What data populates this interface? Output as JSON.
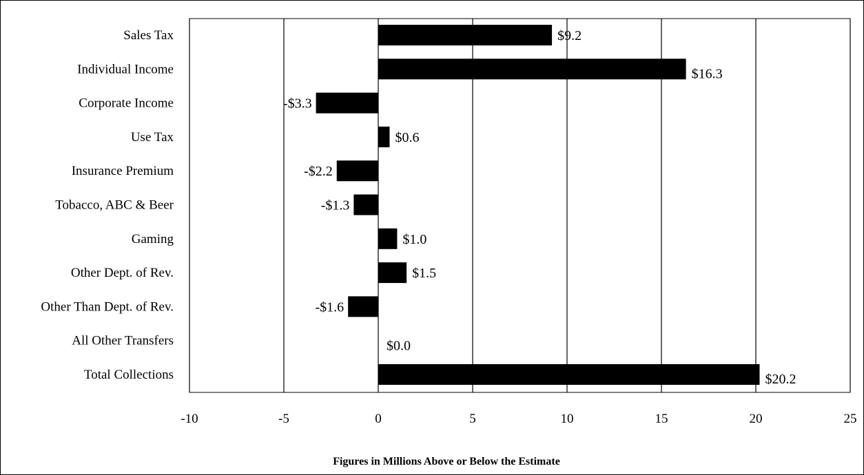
{
  "chart_data": {
    "type": "bar",
    "orientation": "horizontal",
    "categories": [
      "Sales Tax",
      "Individual Income",
      "Corporate Income",
      "Use Tax",
      "Insurance Premium",
      "Tobacco, ABC & Beer",
      "Gaming",
      "Other Dept. of Rev.",
      "Other Than Dept. of Rev.",
      "All Other Transfers",
      "Total Collections"
    ],
    "values": [
      9.2,
      16.3,
      -3.3,
      0.6,
      -2.2,
      -1.3,
      1.0,
      1.5,
      -1.6,
      0.0,
      20.2
    ],
    "data_labels": [
      "$9.2",
      "$16.3",
      "-$3.3",
      "$0.6",
      "-$2.2",
      "-$1.3",
      "$1.0",
      "$1.5",
      "-$1.6",
      "$0.0",
      "$20.2"
    ],
    "xlim": [
      -10,
      25
    ],
    "xticks": [
      -10,
      -5,
      0,
      5,
      10,
      15,
      20,
      25
    ],
    "xtick_labels": [
      "-10",
      "-5",
      "0",
      "5",
      "10",
      "15",
      "20",
      "25"
    ],
    "xlabel": "Figures in Millions Above or Below the Estimate",
    "grid": "vertical",
    "legend": "none",
    "colors": {
      "bar": "#000000",
      "grid": "#000000",
      "background": "#ffffff"
    }
  }
}
